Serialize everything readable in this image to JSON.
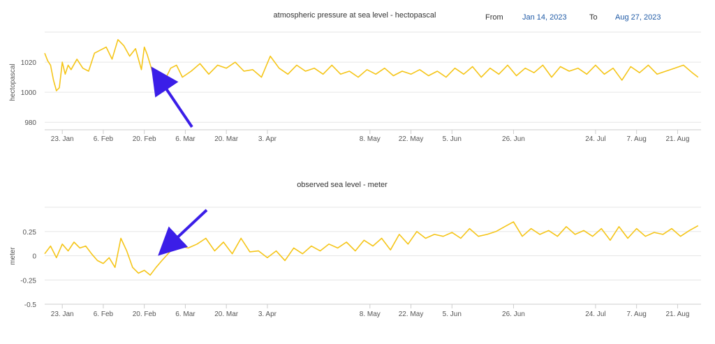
{
  "range": {
    "from_label": "From",
    "from_value": "Jan 14, 2023",
    "to_label": "To",
    "to_value": "Aug 27, 2023"
  },
  "colors": {
    "line": "#f5c518",
    "arrow": "#3b1ee8",
    "grid": "#e6e6e6",
    "axis": "#cccccc",
    "text": "#333333"
  },
  "chart_data": [
    {
      "type": "line",
      "title": "atmospheric pressure at sea level - hectopascal",
      "xlabel": "",
      "ylabel": "hectopascal",
      "ylim": [
        975,
        1040
      ],
      "yticks": [
        980,
        1000,
        1020
      ],
      "grid": true,
      "x_range": [
        "2023-01-17",
        "2023-08-29"
      ],
      "xticks": [
        {
          "date": "2023-01-23",
          "label": "23. Jan"
        },
        {
          "date": "2023-02-06",
          "label": "6. Feb"
        },
        {
          "date": "2023-02-20",
          "label": "20. Feb"
        },
        {
          "date": "2023-03-06",
          "label": "6. Mar"
        },
        {
          "date": "2023-03-20",
          "label": "20. Mar"
        },
        {
          "date": "2023-04-03",
          "label": "3. Apr"
        },
        {
          "date": "2023-05-08",
          "label": "8. May"
        },
        {
          "date": "2023-05-22",
          "label": "22. May"
        },
        {
          "date": "2023-06-05",
          "label": "5. Jun"
        },
        {
          "date": "2023-06-26",
          "label": "26. Jun"
        },
        {
          "date": "2023-07-24",
          "label": "24. Jul"
        },
        {
          "date": "2023-08-07",
          "label": "7. Aug"
        },
        {
          "date": "2023-08-21",
          "label": "21. Aug"
        }
      ],
      "series": [
        {
          "x": [
            "2023-01-17",
            "2023-01-18",
            "2023-01-19",
            "2023-01-20",
            "2023-01-21",
            "2023-01-22",
            "2023-01-23",
            "2023-01-24",
            "2023-01-25",
            "2023-01-26",
            "2023-01-28",
            "2023-01-30",
            "2023-02-01",
            "2023-02-03",
            "2023-02-05",
            "2023-02-07",
            "2023-02-09",
            "2023-02-11",
            "2023-02-13",
            "2023-02-15",
            "2023-02-17",
            "2023-02-19",
            "2023-02-20",
            "2023-02-21",
            "2023-02-23",
            "2023-02-25",
            "2023-02-27",
            "2023-03-01",
            "2023-03-03",
            "2023-03-05",
            "2023-03-08",
            "2023-03-11",
            "2023-03-14",
            "2023-03-17",
            "2023-03-20",
            "2023-03-23",
            "2023-03-26",
            "2023-03-29",
            "2023-04-01",
            "2023-04-04",
            "2023-04-07",
            "2023-04-10",
            "2023-04-13",
            "2023-04-16",
            "2023-04-19",
            "2023-04-22",
            "2023-04-25",
            "2023-04-28",
            "2023-05-01",
            "2023-05-04",
            "2023-05-07",
            "2023-05-10",
            "2023-05-13",
            "2023-05-16",
            "2023-05-19",
            "2023-05-22",
            "2023-05-25",
            "2023-05-28",
            "2023-05-31",
            "2023-06-03",
            "2023-06-06",
            "2023-06-09",
            "2023-06-12",
            "2023-06-15",
            "2023-06-18",
            "2023-06-21",
            "2023-06-24",
            "2023-06-27",
            "2023-06-30",
            "2023-07-03",
            "2023-07-06",
            "2023-07-09",
            "2023-07-12",
            "2023-07-15",
            "2023-07-18",
            "2023-07-21",
            "2023-07-24",
            "2023-07-27",
            "2023-07-30",
            "2023-08-02",
            "2023-08-05",
            "2023-08-08",
            "2023-08-11",
            "2023-08-14",
            "2023-08-17",
            "2023-08-20",
            "2023-08-23",
            "2023-08-26",
            "2023-08-28"
          ],
          "values": [
            1026,
            1021,
            1018,
            1008,
            1001,
            1003,
            1020,
            1012,
            1018,
            1015,
            1022,
            1016,
            1014,
            1026,
            1028,
            1030,
            1022,
            1035,
            1031,
            1024,
            1029,
            1015,
            1030,
            1025,
            1012,
            1004,
            1008,
            1016,
            1018,
            1010,
            1014,
            1019,
            1012,
            1018,
            1016,
            1020,
            1014,
            1015,
            1010,
            1024,
            1016,
            1012,
            1018,
            1014,
            1016,
            1012,
            1018,
            1012,
            1014,
            1010,
            1015,
            1012,
            1016,
            1011,
            1014,
            1012,
            1015,
            1011,
            1014,
            1010,
            1016,
            1012,
            1017,
            1010,
            1016,
            1012,
            1018,
            1011,
            1016,
            1013,
            1018,
            1010,
            1017,
            1014,
            1016,
            1012,
            1018,
            1012,
            1016,
            1008,
            1017,
            1013,
            1018,
            1012,
            1014,
            1016,
            1018,
            1013,
            1010
          ]
        }
      ]
    },
    {
      "type": "line",
      "title": "observed sea level - meter",
      "xlabel": "",
      "ylabel": "meter",
      "ylim": [
        -0.5,
        0.5
      ],
      "yticks": [
        -0.5,
        -0.25,
        0,
        0.25
      ],
      "grid": true,
      "x_range": [
        "2023-01-17",
        "2023-08-29"
      ],
      "xticks": [
        {
          "date": "2023-01-23",
          "label": "23. Jan"
        },
        {
          "date": "2023-02-06",
          "label": "6. Feb"
        },
        {
          "date": "2023-02-20",
          "label": "20. Feb"
        },
        {
          "date": "2023-03-06",
          "label": "6. Mar"
        },
        {
          "date": "2023-03-20",
          "label": "20. Mar"
        },
        {
          "date": "2023-04-03",
          "label": "3. Apr"
        },
        {
          "date": "2023-05-08",
          "label": "8. May"
        },
        {
          "date": "2023-05-22",
          "label": "22. May"
        },
        {
          "date": "2023-06-05",
          "label": "5. Jun"
        },
        {
          "date": "2023-06-26",
          "label": "26. Jun"
        },
        {
          "date": "2023-07-24",
          "label": "24. Jul"
        },
        {
          "date": "2023-08-07",
          "label": "7. Aug"
        },
        {
          "date": "2023-08-21",
          "label": "21. Aug"
        }
      ],
      "series": [
        {
          "x": [
            "2023-01-17",
            "2023-01-19",
            "2023-01-21",
            "2023-01-23",
            "2023-01-25",
            "2023-01-27",
            "2023-01-29",
            "2023-01-31",
            "2023-02-02",
            "2023-02-04",
            "2023-02-06",
            "2023-02-08",
            "2023-02-10",
            "2023-02-12",
            "2023-02-14",
            "2023-02-16",
            "2023-02-18",
            "2023-02-20",
            "2023-02-22",
            "2023-02-24",
            "2023-02-26",
            "2023-03-01",
            "2023-03-04",
            "2023-03-07",
            "2023-03-10",
            "2023-03-13",
            "2023-03-16",
            "2023-03-19",
            "2023-03-22",
            "2023-03-25",
            "2023-03-28",
            "2023-03-31",
            "2023-04-03",
            "2023-04-06",
            "2023-04-09",
            "2023-04-12",
            "2023-04-15",
            "2023-04-18",
            "2023-04-21",
            "2023-04-24",
            "2023-04-27",
            "2023-04-30",
            "2023-05-03",
            "2023-05-06",
            "2023-05-09",
            "2023-05-12",
            "2023-05-15",
            "2023-05-18",
            "2023-05-21",
            "2023-05-24",
            "2023-05-27",
            "2023-05-30",
            "2023-06-02",
            "2023-06-05",
            "2023-06-08",
            "2023-06-11",
            "2023-06-14",
            "2023-06-17",
            "2023-06-20",
            "2023-06-23",
            "2023-06-26",
            "2023-06-29",
            "2023-07-02",
            "2023-07-05",
            "2023-07-08",
            "2023-07-11",
            "2023-07-14",
            "2023-07-17",
            "2023-07-20",
            "2023-07-23",
            "2023-07-26",
            "2023-07-29",
            "2023-08-01",
            "2023-08-04",
            "2023-08-07",
            "2023-08-10",
            "2023-08-13",
            "2023-08-16",
            "2023-08-19",
            "2023-08-22",
            "2023-08-25",
            "2023-08-28"
          ],
          "values": [
            0.02,
            0.1,
            -0.02,
            0.12,
            0.05,
            0.14,
            0.08,
            0.1,
            0.02,
            -0.05,
            -0.08,
            -0.02,
            -0.12,
            0.18,
            0.05,
            -0.12,
            -0.18,
            -0.15,
            -0.2,
            -0.12,
            -0.05,
            0.05,
            0.1,
            0.08,
            0.12,
            0.18,
            0.05,
            0.14,
            0.02,
            0.18,
            0.04,
            0.05,
            -0.02,
            0.05,
            -0.05,
            0.08,
            0.02,
            0.1,
            0.05,
            0.12,
            0.08,
            0.14,
            0.05,
            0.16,
            0.1,
            0.18,
            0.06,
            0.22,
            0.12,
            0.25,
            0.18,
            0.22,
            0.2,
            0.24,
            0.18,
            0.28,
            0.2,
            0.22,
            0.25,
            0.3,
            0.35,
            0.2,
            0.28,
            0.22,
            0.26,
            0.2,
            0.3,
            0.22,
            0.26,
            0.2,
            0.28,
            0.16,
            0.3,
            0.18,
            0.28,
            0.2,
            0.24,
            0.22,
            0.28,
            0.2,
            0.26,
            0.31
          ]
        }
      ]
    }
  ]
}
